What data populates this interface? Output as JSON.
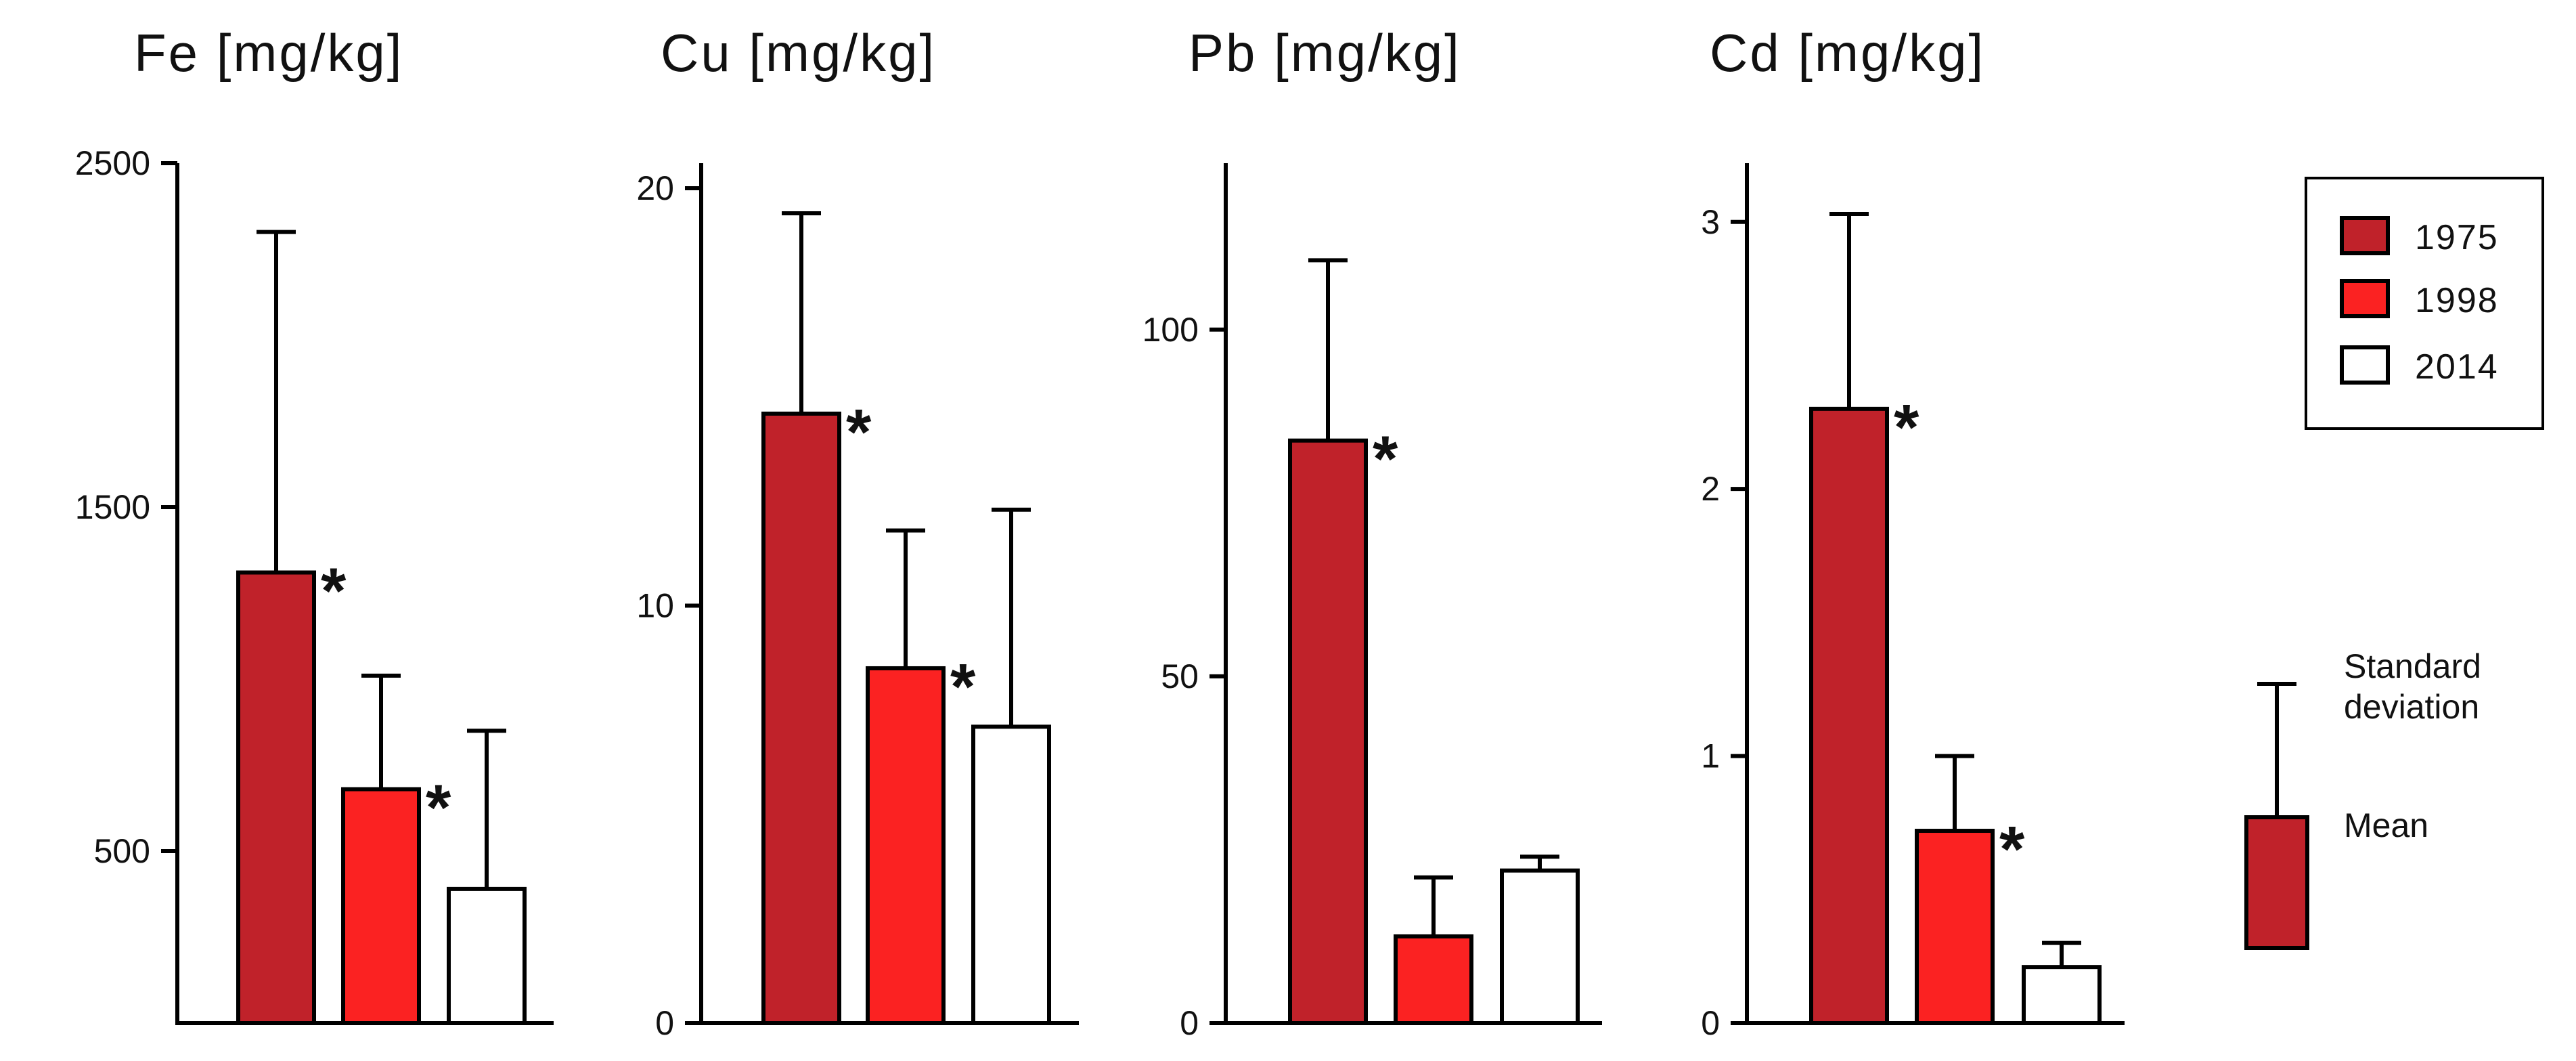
{
  "colors": {
    "y1975": "#c0222a",
    "y1998": "#fb2222",
    "y2014": "#ffffff"
  },
  "chart_data": [
    {
      "type": "bar",
      "title": "Fe [mg/kg]",
      "categories": [
        "1975",
        "1998",
        "2014"
      ],
      "values": [
        1310,
        680,
        390
      ],
      "sd_upper": [
        2300,
        1010,
        850
      ],
      "significant": [
        true,
        true,
        false
      ],
      "ylim": [
        0,
        2500
      ],
      "yticks": [
        500,
        1500,
        2500
      ],
      "xlabel": "",
      "ylabel": ""
    },
    {
      "type": "bar",
      "title": "Cu [mg/kg]",
      "categories": [
        "1975",
        "1998",
        "2014"
      ],
      "values": [
        14.6,
        8.5,
        7.1
      ],
      "sd_upper": [
        19.4,
        11.8,
        12.3
      ],
      "significant": [
        true,
        true,
        false
      ],
      "ylim": [
        0,
        20.6
      ],
      "yticks": [
        0,
        10,
        20
      ],
      "xlabel": "",
      "ylabel": ""
    },
    {
      "type": "bar",
      "title": "Pb [mg/kg]",
      "categories": [
        "1975",
        "1998",
        "2014"
      ],
      "values": [
        84,
        12.5,
        22
      ],
      "sd_upper": [
        110,
        21,
        24
      ],
      "significant": [
        true,
        false,
        false
      ],
      "ylim": [
        0,
        124
      ],
      "yticks": [
        0,
        50,
        100
      ],
      "xlabel": "",
      "ylabel": ""
    },
    {
      "type": "bar",
      "title": "Cd [mg/kg]",
      "categories": [
        "1975",
        "1998",
        "2014"
      ],
      "values": [
        2.3,
        0.72,
        0.21
      ],
      "sd_upper": [
        3.03,
        1.0,
        0.3
      ],
      "significant": [
        true,
        true,
        false
      ],
      "ylim": [
        0,
        3.22
      ],
      "yticks": [
        0,
        1,
        2,
        3
      ],
      "xlabel": "",
      "ylabel": ""
    }
  ],
  "legend": {
    "items": [
      {
        "label": "1975",
        "color_key": "y1975"
      },
      {
        "label": "1998",
        "color_key": "y1998"
      },
      {
        "label": "2014",
        "color_key": "y2014"
      }
    ]
  },
  "key": {
    "sd_line1": "Standard",
    "sd_line2": "deviation",
    "mean_label": "Mean"
  },
  "significance_marker": "*"
}
